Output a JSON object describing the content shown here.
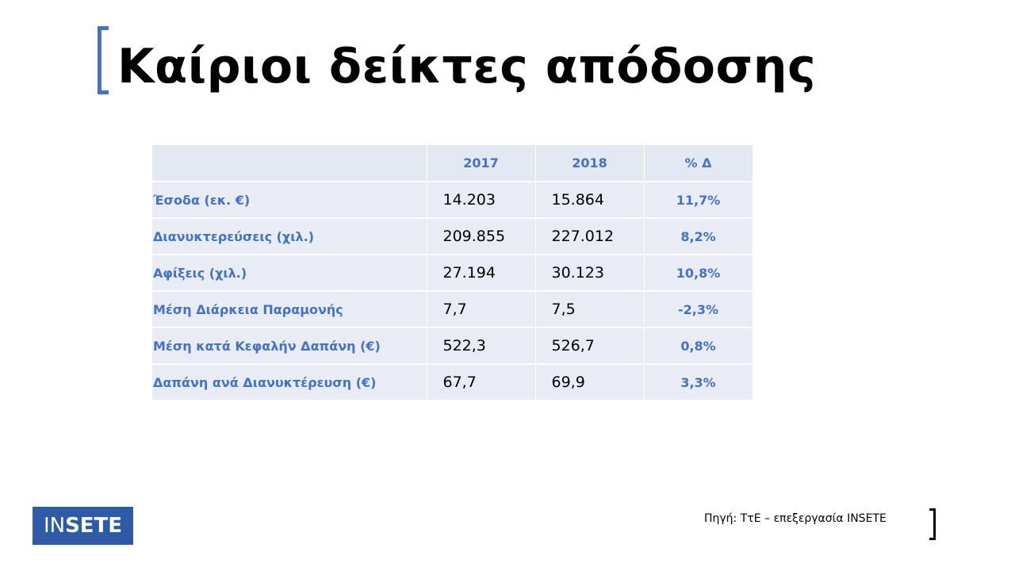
{
  "title": "Καίριοι δείκτες απόδοσης",
  "table": {
    "headers": [
      "",
      "2017",
      "2018",
      "% Δ"
    ],
    "rows": [
      {
        "label": "Έσοδα (εκ. €)",
        "y2017": "14.203",
        "y2018": "15.864",
        "change": "11,7%"
      },
      {
        "label": "Διανυκτερεύσεις (χιλ.)",
        "y2017": "209.855",
        "y2018": "227.012",
        "change": "8,2%"
      },
      {
        "label": "Αφίξεις (χιλ.)",
        "y2017": "27.194",
        "y2018": "30.123",
        "change": "10,8%"
      },
      {
        "label": "Μέση Διάρκεια Παραμονής",
        "y2017": "7,7",
        "y2018": "7,5",
        "change": "-2,3%"
      },
      {
        "label": "Μέση κατά Κεφαλήν Δαπάνη (€)",
        "y2017": "522,3",
        "y2018": "526,7",
        "change": "0,8%"
      },
      {
        "label": "Δαπάνη ανά Διανυκτέρευση (€)",
        "y2017": "67,7",
        "y2018": "69,9",
        "change": "3,3%"
      }
    ]
  },
  "logo": {
    "part1": "IN",
    "part2": "SETE"
  },
  "source": "Πηγή: ΤτΕ – επεξεργασία INSETE",
  "colors": {
    "accent": "#4472c4",
    "logo_bg": "#2e5aa6",
    "cell_bg": "#e9ebf5"
  }
}
